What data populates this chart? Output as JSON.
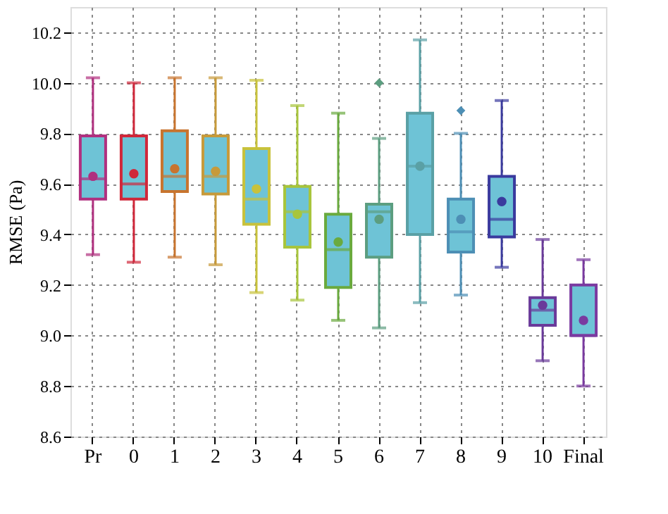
{
  "chart_data": {
    "type": "box",
    "ylabel": "RMSE (Pa)",
    "categories": [
      "Pr",
      "0",
      "1",
      "2",
      "3",
      "4",
      "5",
      "6",
      "7",
      "8",
      "9",
      "10",
      "Final"
    ],
    "boxes": [
      {
        "low": 9.32,
        "q1": 9.54,
        "median": 9.62,
        "q3": 9.79,
        "high": 10.02,
        "mean": 9.63
      },
      {
        "low": 9.29,
        "q1": 9.54,
        "median": 9.6,
        "q3": 9.79,
        "high": 10.0,
        "mean": 9.64
      },
      {
        "low": 9.31,
        "q1": 9.57,
        "median": 9.63,
        "q3": 9.81,
        "high": 10.02,
        "mean": 9.66
      },
      {
        "low": 9.28,
        "q1": 9.56,
        "median": 9.63,
        "q3": 9.79,
        "high": 10.02,
        "mean": 9.65
      },
      {
        "low": 9.17,
        "q1": 9.44,
        "median": 9.54,
        "q3": 9.74,
        "high": 10.01,
        "mean": 9.58
      },
      {
        "low": 9.14,
        "q1": 9.35,
        "median": 9.49,
        "q3": 9.59,
        "high": 9.91,
        "mean": 9.48
      },
      {
        "low": 9.06,
        "q1": 9.19,
        "median": 9.34,
        "q3": 9.48,
        "high": 9.88,
        "mean": 9.37
      },
      {
        "low": 9.03,
        "q1": 9.31,
        "median": 9.49,
        "q3": 9.52,
        "high": 9.78,
        "mean": 9.46,
        "outliers": [
          10.0
        ]
      },
      {
        "low": 9.13,
        "q1": 9.4,
        "median": 9.67,
        "q3": 9.88,
        "high": 10.17,
        "mean": 9.67
      },
      {
        "low": 9.16,
        "q1": 9.33,
        "median": 9.41,
        "q3": 9.54,
        "high": 9.8,
        "mean": 9.46,
        "outliers": [
          9.89
        ]
      },
      {
        "low": 9.27,
        "q1": 9.39,
        "median": 9.46,
        "q3": 9.63,
        "high": 9.93,
        "mean": 9.53
      },
      {
        "low": 8.9,
        "q1": 9.04,
        "median": 9.1,
        "q3": 9.15,
        "high": 9.38,
        "mean": 9.12
      },
      {
        "low": 8.8,
        "q1": 9.0,
        "median": 9.0,
        "q3": 9.2,
        "high": 9.3,
        "mean": 9.06
      }
    ],
    "colors": [
      "#b0307f",
      "#d0273a",
      "#c8742e",
      "#c79a3a",
      "#c8c23b",
      "#a8c53c",
      "#6aaa3e",
      "#5c9e80",
      "#5aa0a5",
      "#4d8fb5",
      "#3a3a9e",
      "#6a3a9a",
      "#7a3aa0"
    ],
    "ylim": [
      8.6,
      10.3
    ],
    "yticks": [
      {
        "value": 8.6,
        "label": "8.6"
      },
      {
        "value": 8.8,
        "label": "8.8"
      },
      {
        "value": 9.0,
        "label": "9.0"
      },
      {
        "value": 9.2,
        "label": "9.2"
      },
      {
        "value": 9.4,
        "label": "9.4"
      },
      {
        "value": 9.6,
        "label": "9.6"
      },
      {
        "value": 9.8,
        "label": "9.8"
      },
      {
        "value": 10.0,
        "label": "10.0"
      },
      {
        "value": 10.2,
        "label": "10.2"
      }
    ],
    "grid": true,
    "legend": false
  }
}
